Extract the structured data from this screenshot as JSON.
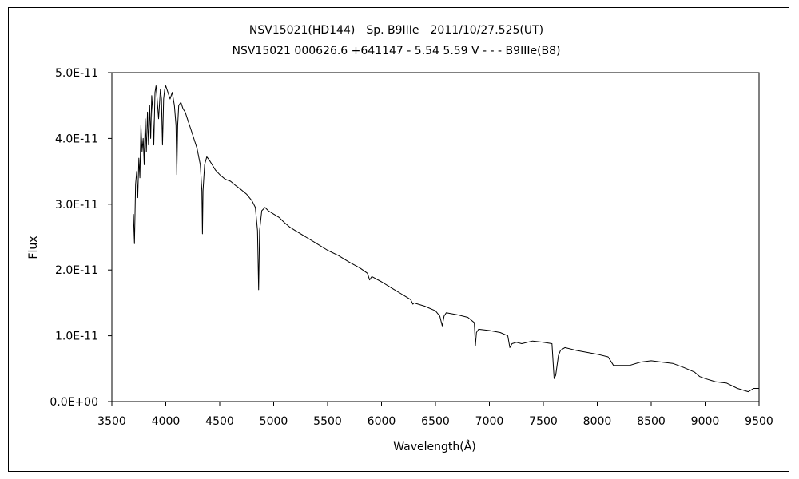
{
  "chart_data": {
    "type": "line",
    "title": "NSV15021(HD144)　Sp. B9IIIe　2011/10/27.525(UT)",
    "subtitle": "NSV15021 000626.6 +641147 - 5.54 5.59 V - - - B9IIIe(B8)",
    "xlabel": "Wavelength(Å)",
    "ylabel": "Flux",
    "xlim": [
      3500,
      9500
    ],
    "ylim": [
      0,
      5e-11
    ],
    "x_ticks": [
      "3500",
      "4000",
      "4500",
      "5000",
      "5500",
      "6000",
      "6500",
      "7000",
      "7500",
      "8000",
      "8500",
      "9000",
      "9500"
    ],
    "y_ticks": [
      "0.0E+00",
      "1.0E-11",
      "2.0E-11",
      "3.0E-11",
      "4.0E-11",
      "5.0E-11"
    ],
    "grid": false,
    "legend": "none",
    "series": [
      {
        "color": "#000000",
        "points": [
          [
            3700,
            2.85e-11
          ],
          [
            3710,
            2.4e-11
          ],
          [
            3720,
            3.3e-11
          ],
          [
            3730,
            3.5e-11
          ],
          [
            3740,
            3.1e-11
          ],
          [
            3750,
            3.7e-11
          ],
          [
            3760,
            3.4e-11
          ],
          [
            3770,
            4.2e-11
          ],
          [
            3780,
            3.8e-11
          ],
          [
            3790,
            4e-11
          ],
          [
            3800,
            3.6e-11
          ],
          [
            3810,
            4.3e-11
          ],
          [
            3820,
            3.8e-11
          ],
          [
            3830,
            4.4e-11
          ],
          [
            3840,
            3.9e-11
          ],
          [
            3850,
            4.5e-11
          ],
          [
            3860,
            4e-11
          ],
          [
            3870,
            4.65e-11
          ],
          [
            3880,
            4.4e-11
          ],
          [
            3889,
            3.9e-11
          ],
          [
            3900,
            4.7e-11
          ],
          [
            3910,
            4.8e-11
          ],
          [
            3920,
            4.6e-11
          ],
          [
            3933,
            4.3e-11
          ],
          [
            3950,
            4.75e-11
          ],
          [
            3960,
            4.6e-11
          ],
          [
            3970,
            3.9e-11
          ],
          [
            3980,
            4.6e-11
          ],
          [
            3990,
            4.75e-11
          ],
          [
            4000,
            4.8e-11
          ],
          [
            4020,
            4.7e-11
          ],
          [
            4040,
            4.6e-11
          ],
          [
            4060,
            4.7e-11
          ],
          [
            4080,
            4.5e-11
          ],
          [
            4095,
            4.2e-11
          ],
          [
            4102,
            3.45e-11
          ],
          [
            4110,
            4.2e-11
          ],
          [
            4120,
            4.5e-11
          ],
          [
            4140,
            4.55e-11
          ],
          [
            4160,
            4.45e-11
          ],
          [
            4180,
            4.4e-11
          ],
          [
            4200,
            4.3e-11
          ],
          [
            4230,
            4.15e-11
          ],
          [
            4260,
            4e-11
          ],
          [
            4290,
            3.85e-11
          ],
          [
            4320,
            3.6e-11
          ],
          [
            4335,
            3.2e-11
          ],
          [
            4340,
            2.55e-11
          ],
          [
            4345,
            3.2e-11
          ],
          [
            4360,
            3.6e-11
          ],
          [
            4380,
            3.72e-11
          ],
          [
            4400,
            3.68e-11
          ],
          [
            4430,
            3.6e-11
          ],
          [
            4460,
            3.52e-11
          ],
          [
            4500,
            3.45e-11
          ],
          [
            4550,
            3.38e-11
          ],
          [
            4600,
            3.35e-11
          ],
          [
            4650,
            3.28e-11
          ],
          [
            4700,
            3.22e-11
          ],
          [
            4750,
            3.15e-11
          ],
          [
            4800,
            3.05e-11
          ],
          [
            4830,
            2.95e-11
          ],
          [
            4850,
            2.6e-11
          ],
          [
            4861,
            1.7e-11
          ],
          [
            4870,
            2.6e-11
          ],
          [
            4890,
            2.9e-11
          ],
          [
            4920,
            2.95e-11
          ],
          [
            4950,
            2.9e-11
          ],
          [
            5000,
            2.85e-11
          ],
          [
            5050,
            2.8e-11
          ],
          [
            5100,
            2.72e-11
          ],
          [
            5150,
            2.65e-11
          ],
          [
            5200,
            2.6e-11
          ],
          [
            5300,
            2.5e-11
          ],
          [
            5400,
            2.4e-11
          ],
          [
            5500,
            2.3e-11
          ],
          [
            5600,
            2.22e-11
          ],
          [
            5700,
            2.12e-11
          ],
          [
            5800,
            2.03e-11
          ],
          [
            5870,
            1.95e-11
          ],
          [
            5890,
            1.85e-11
          ],
          [
            5910,
            1.9e-11
          ],
          [
            6000,
            1.82e-11
          ],
          [
            6100,
            1.72e-11
          ],
          [
            6200,
            1.62e-11
          ],
          [
            6270,
            1.55e-11
          ],
          [
            6290,
            1.48e-11
          ],
          [
            6300,
            1.5e-11
          ],
          [
            6400,
            1.45e-11
          ],
          [
            6500,
            1.38e-11
          ],
          [
            6540,
            1.3e-11
          ],
          [
            6563,
            1.15e-11
          ],
          [
            6580,
            1.3e-11
          ],
          [
            6600,
            1.35e-11
          ],
          [
            6700,
            1.32e-11
          ],
          [
            6800,
            1.28e-11
          ],
          [
            6860,
            1.2e-11
          ],
          [
            6870,
            8.5e-12
          ],
          [
            6880,
            1.05e-11
          ],
          [
            6900,
            1.1e-11
          ],
          [
            7000,
            1.08e-11
          ],
          [
            7100,
            1.05e-11
          ],
          [
            7170,
            1e-11
          ],
          [
            7190,
            8.2e-12
          ],
          [
            7210,
            8.8e-12
          ],
          [
            7250,
            9e-12
          ],
          [
            7300,
            8.8e-12
          ],
          [
            7400,
            9.2e-12
          ],
          [
            7500,
            9e-12
          ],
          [
            7580,
            8.8e-12
          ],
          [
            7600,
            3.5e-12
          ],
          [
            7615,
            4e-12
          ],
          [
            7640,
            7e-12
          ],
          [
            7660,
            7.8e-12
          ],
          [
            7700,
            8.2e-12
          ],
          [
            7800,
            7.8e-12
          ],
          [
            7900,
            7.5e-12
          ],
          [
            8000,
            7.2e-12
          ],
          [
            8100,
            6.8e-12
          ],
          [
            8150,
            5.5e-12
          ],
          [
            8200,
            5.5e-12
          ],
          [
            8300,
            5.5e-12
          ],
          [
            8400,
            6e-12
          ],
          [
            8500,
            6.2e-12
          ],
          [
            8600,
            6e-12
          ],
          [
            8700,
            5.8e-12
          ],
          [
            8800,
            5.2e-12
          ],
          [
            8900,
            4.5e-12
          ],
          [
            8950,
            3.8e-12
          ],
          [
            9000,
            3.5e-12
          ],
          [
            9100,
            3e-12
          ],
          [
            9200,
            2.8e-12
          ],
          [
            9300,
            2e-12
          ],
          [
            9400,
            1.5e-12
          ],
          [
            9450,
            2e-12
          ],
          [
            9500,
            2e-12
          ]
        ]
      }
    ]
  }
}
